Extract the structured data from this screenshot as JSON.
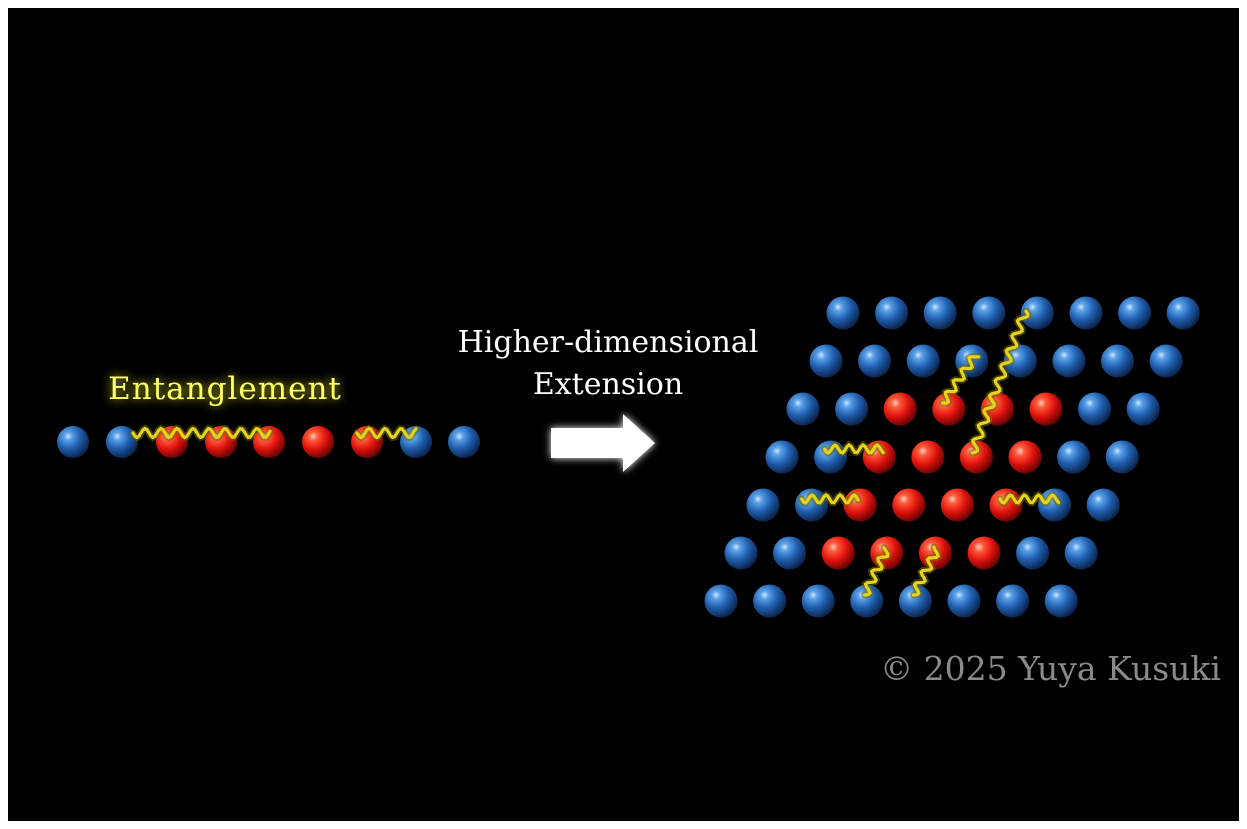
{
  "labels": {
    "entanglement": "Entanglement",
    "extension_line1": "Higher-dimensional",
    "extension_line2": "Extension",
    "copyright": "© 2025 Yuya Kusuki"
  },
  "colors": {
    "background": "#000000",
    "page_border": "#ffffff",
    "blue_particle": "#1f5fae",
    "red_particle": "#e0120c",
    "entanglement_wave": "#e8d21a",
    "entanglement_glow": "#6b6a00",
    "label_text": "#ffffff",
    "copyright_text": "#8a8a8a",
    "arrow": "#ffffff"
  },
  "chain_1d": {
    "particles": [
      "blue",
      "blue",
      "red",
      "red",
      "red",
      "red",
      "red",
      "blue",
      "blue"
    ]
  },
  "lattice_2d": {
    "rows": [
      [
        "blue",
        "blue",
        "blue",
        "blue",
        "blue",
        "blue",
        "blue",
        "blue"
      ],
      [
        "blue",
        "blue",
        "blue",
        "blue",
        "blue",
        "blue",
        "blue",
        "blue"
      ],
      [
        "blue",
        "blue",
        "red",
        "red",
        "red",
        "red",
        "blue",
        "blue"
      ],
      [
        "blue",
        "blue",
        "red",
        "red",
        "red",
        "red",
        "blue",
        "blue"
      ],
      [
        "blue",
        "blue",
        "red",
        "red",
        "red",
        "red",
        "blue",
        "blue"
      ],
      [
        "blue",
        "blue",
        "red",
        "red",
        "red",
        "red",
        "blue",
        "blue"
      ],
      [
        "blue",
        "blue",
        "blue",
        "blue",
        "blue",
        "blue",
        "blue",
        "blue"
      ]
    ]
  }
}
